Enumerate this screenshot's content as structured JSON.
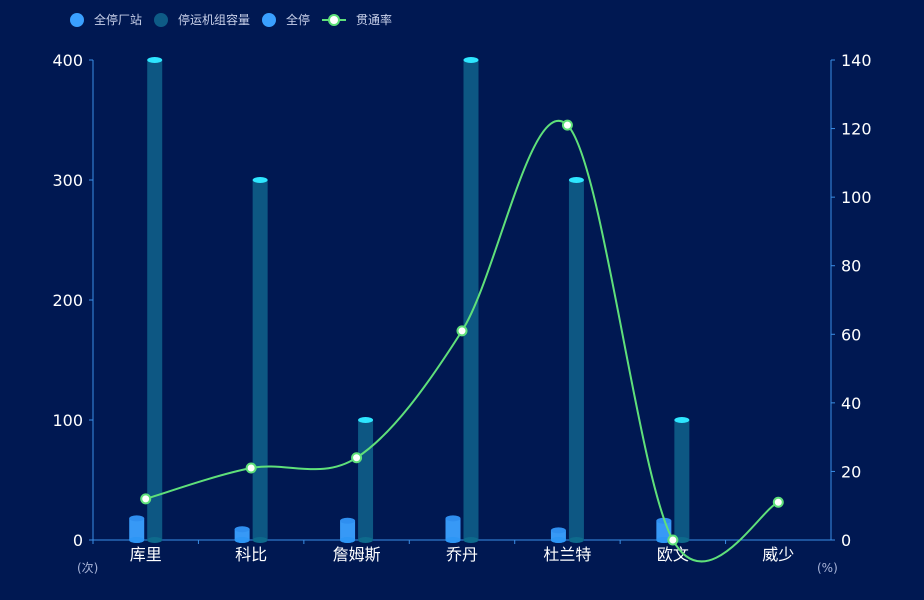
{
  "chart_data": {
    "type": "bar",
    "categories": [
      "库里",
      "科比",
      "詹姆斯",
      "乔丹",
      "杜兰特",
      "欧文",
      "威少"
    ],
    "series": [
      {
        "name": "全停厂站",
        "kind": "bar",
        "axis": "left",
        "values": [
          18,
          9,
          16,
          18,
          8,
          16,
          0
        ],
        "color": "#3aa0ff"
      },
      {
        "name": "全停",
        "kind": "bar",
        "axis": "left",
        "values": [
          0,
          0,
          0,
          0,
          0,
          0,
          0
        ],
        "color": "#3aa0ff"
      },
      {
        "name": "停运机组容量",
        "kind": "bar",
        "axis": "left",
        "values": [
          400,
          300,
          100,
          400,
          300,
          100,
          0
        ],
        "color": "#0e5b86",
        "cap_color": "#2ee6ff"
      },
      {
        "name": "贯通率",
        "kind": "line",
        "axis": "right",
        "values": [
          12,
          21,
          24,
          61,
          121,
          0,
          11
        ],
        "color": "#5fe07a"
      }
    ],
    "y_left": {
      "min": 0,
      "max": 400,
      "ticks": [
        0,
        100,
        200,
        300,
        400
      ],
      "unit": "(次)"
    },
    "y_right": {
      "min": 0,
      "max": 140,
      "ticks": [
        0,
        20,
        40,
        60,
        80,
        100,
        120,
        140
      ],
      "unit": "(%)"
    },
    "legend": {
      "placement": "top-left",
      "items": [
        "全停厂站",
        "停运机组容量",
        "全停",
        "贯通率"
      ]
    },
    "grid": false
  }
}
